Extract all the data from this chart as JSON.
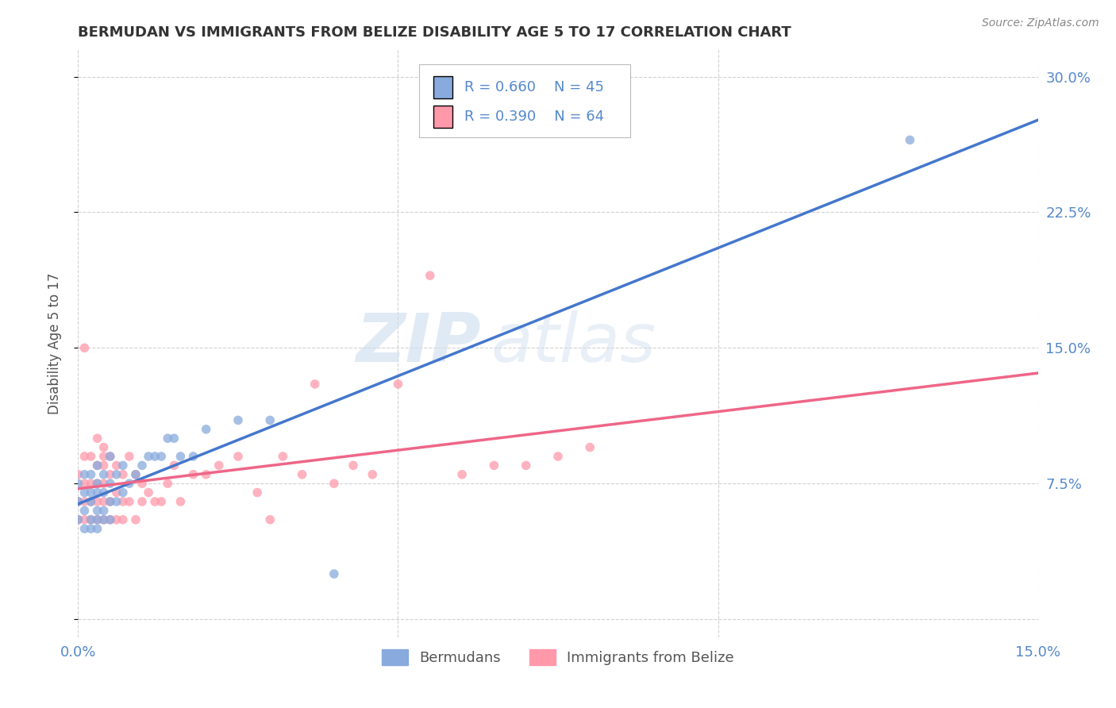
{
  "title": "BERMUDAN VS IMMIGRANTS FROM BELIZE DISABILITY AGE 5 TO 17 CORRELATION CHART",
  "source": "Source: ZipAtlas.com",
  "ylabel": "Disability Age 5 to 17",
  "xlim": [
    0.0,
    0.15
  ],
  "ylim": [
    -0.01,
    0.315
  ],
  "blue_color": "#88AADD",
  "pink_color": "#FF99AA",
  "blue_line_color": "#4477CC",
  "pink_line_color": "#EE6688",
  "watermark_zip": "ZIP",
  "watermark_atlas": "atlas",
  "legend_R_blue": "R = 0.660",
  "legend_N_blue": "N = 45",
  "legend_R_pink": "R = 0.390",
  "legend_N_pink": "N = 64",
  "blue_scatter_x": [
    0.0,
    0.0,
    0.0,
    0.001,
    0.001,
    0.001,
    0.001,
    0.002,
    0.002,
    0.002,
    0.002,
    0.002,
    0.003,
    0.003,
    0.003,
    0.003,
    0.003,
    0.003,
    0.004,
    0.004,
    0.004,
    0.004,
    0.005,
    0.005,
    0.005,
    0.005,
    0.006,
    0.006,
    0.007,
    0.007,
    0.008,
    0.009,
    0.01,
    0.011,
    0.012,
    0.013,
    0.014,
    0.015,
    0.016,
    0.018,
    0.02,
    0.025,
    0.03,
    0.04,
    0.13
  ],
  "blue_scatter_y": [
    0.055,
    0.065,
    0.075,
    0.05,
    0.06,
    0.07,
    0.08,
    0.05,
    0.055,
    0.065,
    0.07,
    0.08,
    0.05,
    0.055,
    0.06,
    0.07,
    0.075,
    0.085,
    0.055,
    0.06,
    0.07,
    0.08,
    0.055,
    0.065,
    0.075,
    0.09,
    0.065,
    0.08,
    0.07,
    0.085,
    0.075,
    0.08,
    0.085,
    0.09,
    0.09,
    0.09,
    0.1,
    0.1,
    0.09,
    0.09,
    0.105,
    0.11,
    0.11,
    0.025,
    0.265
  ],
  "pink_scatter_x": [
    0.0,
    0.0,
    0.0,
    0.001,
    0.001,
    0.001,
    0.001,
    0.001,
    0.002,
    0.002,
    0.002,
    0.002,
    0.003,
    0.003,
    0.003,
    0.003,
    0.003,
    0.004,
    0.004,
    0.004,
    0.004,
    0.004,
    0.004,
    0.005,
    0.005,
    0.005,
    0.005,
    0.006,
    0.006,
    0.006,
    0.007,
    0.007,
    0.007,
    0.008,
    0.008,
    0.009,
    0.009,
    0.01,
    0.01,
    0.011,
    0.012,
    0.013,
    0.014,
    0.015,
    0.016,
    0.018,
    0.02,
    0.022,
    0.025,
    0.028,
    0.03,
    0.032,
    0.035,
    0.037,
    0.04,
    0.043,
    0.046,
    0.05,
    0.055,
    0.06,
    0.065,
    0.07,
    0.075,
    0.08
  ],
  "pink_scatter_y": [
    0.055,
    0.065,
    0.08,
    0.055,
    0.065,
    0.075,
    0.09,
    0.15,
    0.055,
    0.065,
    0.075,
    0.09,
    0.055,
    0.065,
    0.075,
    0.085,
    0.1,
    0.055,
    0.065,
    0.075,
    0.085,
    0.09,
    0.095,
    0.055,
    0.065,
    0.08,
    0.09,
    0.055,
    0.07,
    0.085,
    0.055,
    0.065,
    0.08,
    0.065,
    0.09,
    0.055,
    0.08,
    0.065,
    0.075,
    0.07,
    0.065,
    0.065,
    0.075,
    0.085,
    0.065,
    0.08,
    0.08,
    0.085,
    0.09,
    0.07,
    0.055,
    0.09,
    0.08,
    0.13,
    0.075,
    0.085,
    0.08,
    0.13,
    0.19,
    0.08,
    0.085,
    0.085,
    0.09,
    0.095
  ],
  "grid_color": "#CCCCCC",
  "bg_color": "#FFFFFF",
  "title_color": "#333333",
  "axis_label_color": "#555555",
  "tick_label_color": "#5588CC"
}
